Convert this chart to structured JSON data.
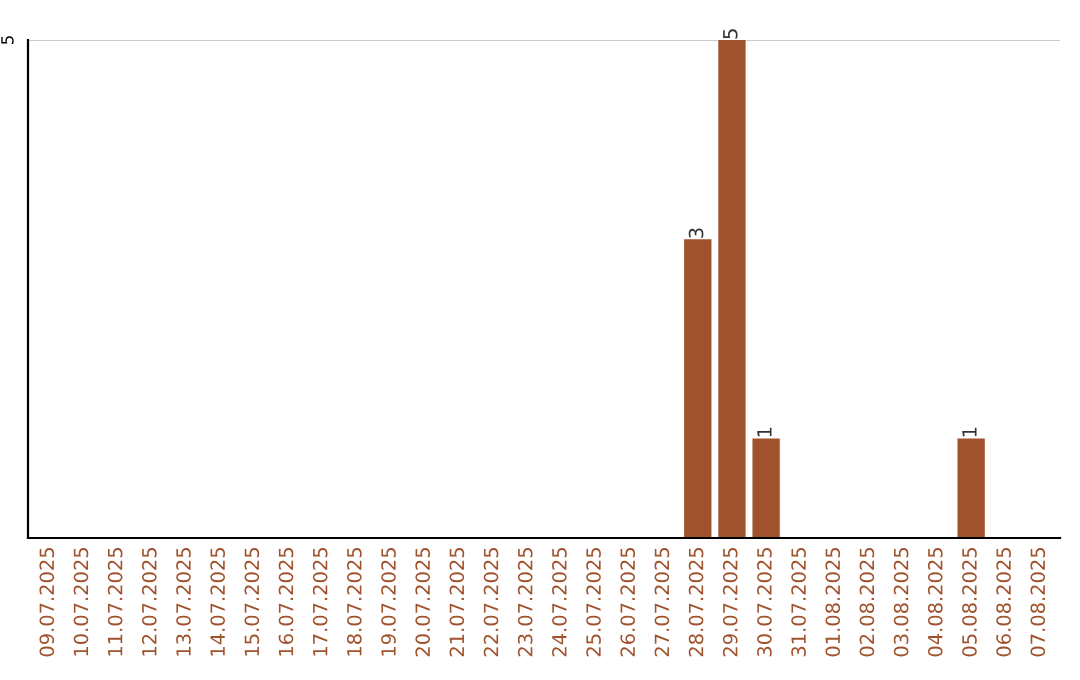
{
  "chart_data": {
    "type": "bar",
    "categories": [
      "09.07.2025",
      "10.07.2025",
      "11.07.2025",
      "12.07.2025",
      "13.07.2025",
      "14.07.2025",
      "15.07.2025",
      "16.07.2025",
      "17.07.2025",
      "18.07.2025",
      "19.07.2025",
      "20.07.2025",
      "21.07.2025",
      "22.07.2025",
      "23.07.2025",
      "24.07.2025",
      "25.07.2025",
      "26.07.2025",
      "27.07.2025",
      "28.07.2025",
      "29.07.2025",
      "30.07.2025",
      "31.07.2025",
      "01.08.2025",
      "02.08.2025",
      "03.08.2025",
      "04.08.2025",
      "05.08.2025",
      "06.08.2025",
      "07.08.2025"
    ],
    "values": [
      null,
      null,
      null,
      null,
      null,
      null,
      null,
      null,
      null,
      null,
      null,
      null,
      null,
      null,
      null,
      null,
      null,
      null,
      null,
      3,
      5,
      1,
      null,
      null,
      null,
      null,
      null,
      1,
      null,
      null
    ],
    "data_labels": true,
    "ref_lines": [
      {
        "axis": "y",
        "value": 5,
        "label": "5",
        "color": "#cccccc"
      }
    ],
    "color": "#a0522d"
  }
}
